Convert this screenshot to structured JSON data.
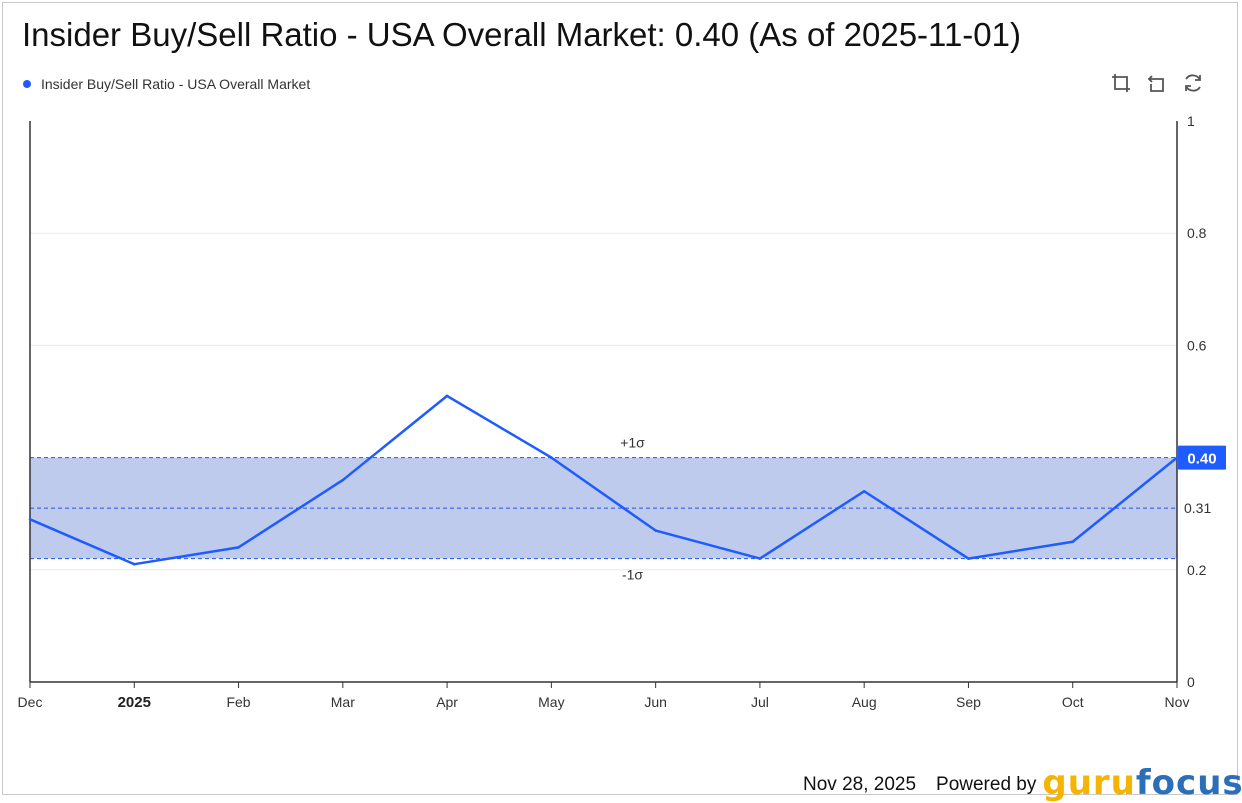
{
  "title": "Insider Buy/Sell Ratio - USA Overall Market: 0.40 (As of 2025-11-01)",
  "legend": {
    "label": "Insider Buy/Sell Ratio - USA Overall Market"
  },
  "toolbar": {
    "icons": [
      "zoom-select-icon",
      "zoom-back-icon",
      "restore-icon"
    ]
  },
  "footer": {
    "date": "Nov 28, 2025",
    "powered_by": "Powered by",
    "brand_part1": "guru",
    "brand_part2": "focus"
  },
  "colors": {
    "line": "#1f5cff",
    "band": "#bcc8ec",
    "band_line": "#2255ee",
    "axis": "#333333",
    "grid": "#e8e8e8",
    "current_badge": "#1f5cff"
  },
  "chart_data": {
    "type": "line",
    "x": [
      "Dec",
      "2025",
      "Feb",
      "Mar",
      "Apr",
      "May",
      "Jun",
      "Jul",
      "Aug",
      "Sep",
      "Oct",
      "Nov"
    ],
    "series": [
      {
        "name": "Insider Buy/Sell Ratio - USA Overall Market",
        "values": [
          0.29,
          0.21,
          0.24,
          0.36,
          0.51,
          0.4,
          0.27,
          0.22,
          0.34,
          0.22,
          0.25,
          0.4
        ]
      }
    ],
    "yticks": [
      0,
      0.2,
      0.6,
      0.8,
      1
    ],
    "ytick_labels": [
      "0",
      "0.2",
      "0.6",
      "0.8",
      "1"
    ],
    "ylim": [
      0,
      1
    ],
    "axis_side": "right",
    "bold_tick": "2025",
    "band": {
      "upper": 0.4,
      "mean": 0.31,
      "lower": 0.22,
      "upper_label": "+1σ",
      "lower_label": "-1σ",
      "mean_label": "0.31"
    },
    "current_value_label": "0.40",
    "grid": true
  }
}
